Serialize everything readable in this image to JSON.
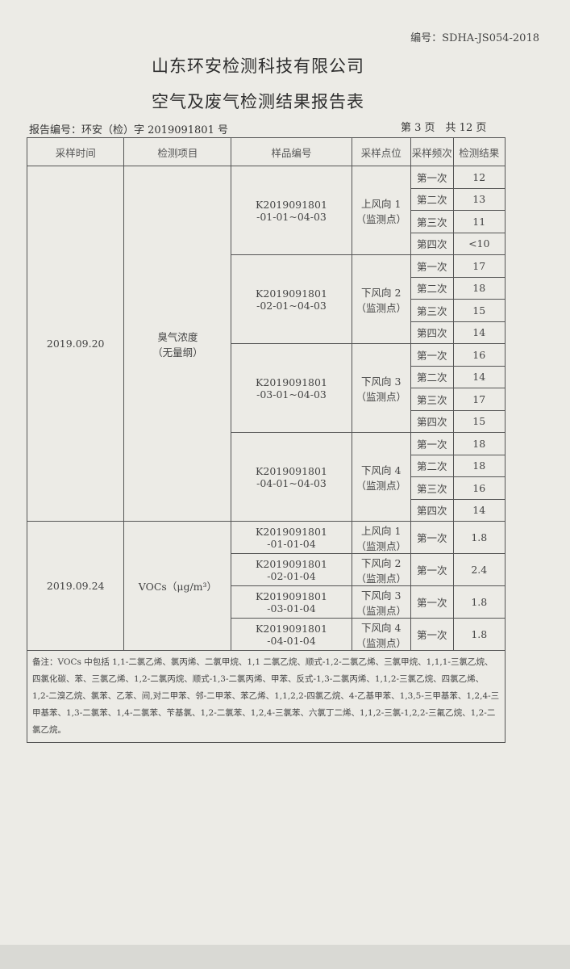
{
  "doc_code": "编号：SDHA-JS054-2018",
  "company": "山东环安检测科技有限公司",
  "title": "空气及废气检测结果报告表",
  "report_no": "报告编号：环安（检）字 2019091801 号",
  "page_info": "第 3 页　共 12 页",
  "headers": [
    "采样时间",
    "检测项目",
    "样品编号",
    "采样点位",
    "采样频次",
    "检测结果"
  ],
  "sections": [
    {
      "date": "2019.09.20",
      "item": "臭气浓度\n（无量纲）",
      "samples": [
        {
          "id": "K2019091801\n-01-01~04-03",
          "point": "上风向 1\n（监测点）",
          "rows": [
            [
              "第一次",
              "12"
            ],
            [
              "第二次",
              "13"
            ],
            [
              "第三次",
              "11"
            ],
            [
              "第四次",
              "<10"
            ]
          ]
        },
        {
          "id": "K2019091801\n-02-01~04-03",
          "point": "下风向 2\n（监测点）",
          "rows": [
            [
              "第一次",
              "17"
            ],
            [
              "第二次",
              "18"
            ],
            [
              "第三次",
              "15"
            ],
            [
              "第四次",
              "14"
            ]
          ]
        },
        {
          "id": "K2019091801\n-03-01~04-03",
          "point": "下风向 3\n（监测点）",
          "rows": [
            [
              "第一次",
              "16"
            ],
            [
              "第二次",
              "14"
            ],
            [
              "第三次",
              "17"
            ],
            [
              "第四次",
              "15"
            ]
          ]
        },
        {
          "id": "K2019091801\n-04-01~04-03",
          "point": "下风向 4\n（监测点）",
          "rows": [
            [
              "第一次",
              "18"
            ],
            [
              "第二次",
              "18"
            ],
            [
              "第三次",
              "16"
            ],
            [
              "第四次",
              "14"
            ]
          ]
        }
      ]
    },
    {
      "date": "2019.09.24",
      "item": "VOCs（μg/m³）",
      "samples": [
        {
          "id": "K2019091801\n-01-01-04",
          "point": "上风向 1\n（监测点）",
          "rows": [
            [
              "第一次",
              "1.8"
            ]
          ]
        },
        {
          "id": "K2019091801\n-02-01-04",
          "point": "下风向 2\n（监测点）",
          "rows": [
            [
              "第一次",
              "2.4"
            ]
          ]
        },
        {
          "id": "K2019091801\n-03-01-04",
          "point": "下风向 3\n（监测点）",
          "rows": [
            [
              "第一次",
              "1.8"
            ]
          ]
        },
        {
          "id": "K2019091801\n-04-01-04",
          "point": "下风向 4\n（监测点）",
          "rows": [
            [
              "第一次",
              "1.8"
            ]
          ]
        }
      ]
    }
  ],
  "note": "备注：VOCs 中包括 1,1-二氯乙烯、氯丙烯、二氯甲烷、1,1 二氯乙烷、顺式-1,2-二氯乙烯、三氯甲烷、1,1,1-三氯乙烷、四氯化碳、苯、三氯乙烯、1,2-二氯丙烷、顺式-1,3-二氯丙烯、甲苯、反式-1,3-二氯丙烯、1,1,2-三氯乙烷、四氯乙烯、1,2-二溴乙烷、氯苯、乙苯、间,对二甲苯、邻-二甲苯、苯乙烯、1,1,2,2-四氯乙烷、4-乙基甲苯、1,3,5-三甲基苯、1,2,4-三甲基苯、1,3-二氯苯、1,4-二氯苯、苄基氯、1,2-二氯苯、1,2,4-三氯苯、六氯丁二烯、1,1,2-三氯-1,2,2-三氟乙烷、1,2-二氯乙烷。"
}
